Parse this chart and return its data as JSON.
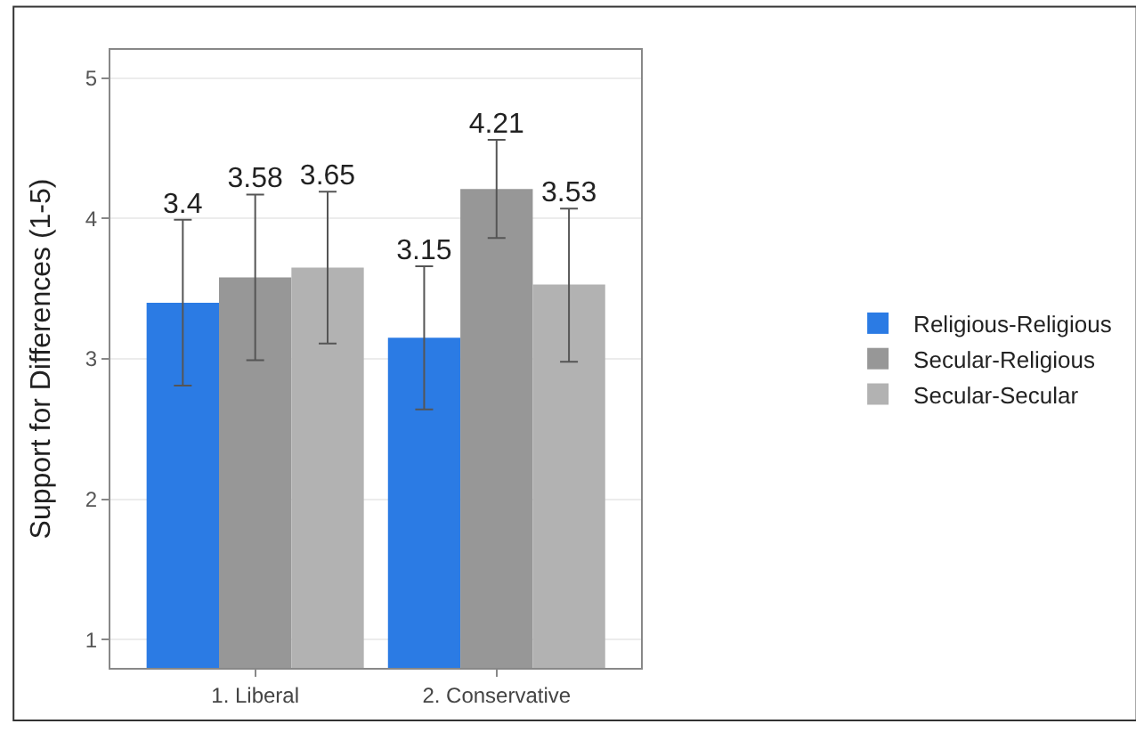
{
  "chart_data": {
    "type": "bar",
    "ylabel": "Support for Differences (1-5)",
    "categories": [
      "1. Liberal",
      "2. Conservative"
    ],
    "series": [
      {
        "name": "Religious-Religious",
        "color": "#2b7be4",
        "values": [
          3.4,
          3.15
        ],
        "errors": [
          [
            2.81,
            3.99
          ],
          [
            2.64,
            3.66
          ]
        ]
      },
      {
        "name": "Secular-Religious",
        "color": "#979797",
        "values": [
          3.58,
          4.21
        ],
        "errors": [
          [
            2.99,
            4.17
          ],
          [
            3.86,
            4.56
          ]
        ]
      },
      {
        "name": "Secular-Secular",
        "color": "#b2b2b2",
        "values": [
          3.65,
          3.53
        ],
        "errors": [
          [
            3.11,
            4.19
          ],
          [
            2.98,
            4.07
          ]
        ]
      }
    ],
    "data_labels": true,
    "ylim": [
      0.8,
      5.2
    ],
    "yticks": [
      1,
      2,
      3,
      4,
      5
    ],
    "grid": "y",
    "legend": "right"
  }
}
